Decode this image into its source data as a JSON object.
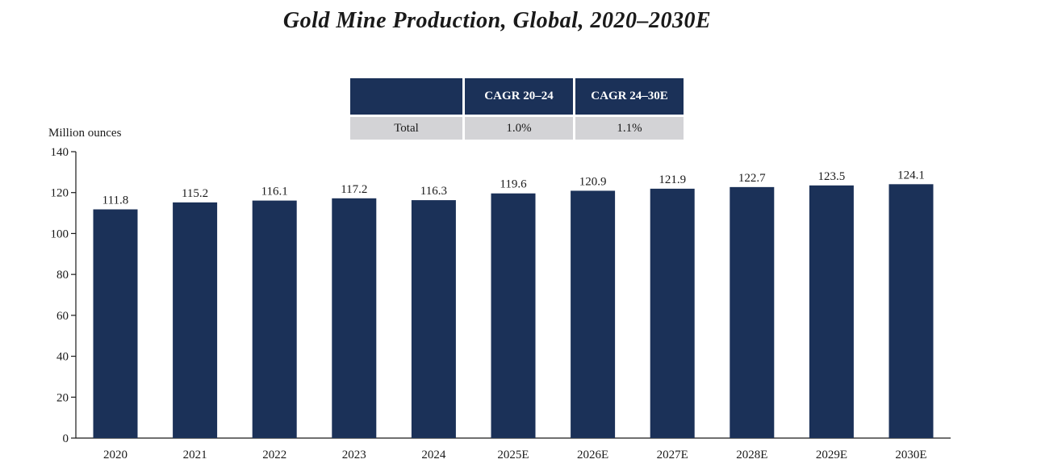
{
  "chart_data": {
    "type": "bar",
    "title": "Gold Mine Production, Global, 2020–2030E",
    "xlabel": "",
    "ylabel": "Million ounces",
    "ylim": [
      0,
      140
    ],
    "yticks": [
      0,
      20,
      40,
      60,
      80,
      100,
      120,
      140
    ],
    "grid": false,
    "categories": [
      "2020",
      "2021",
      "2022",
      "2023",
      "2024",
      "2025E",
      "2026E",
      "2027E",
      "2028E",
      "2029E",
      "2030E"
    ],
    "values": [
      111.8,
      115.2,
      116.1,
      117.2,
      116.3,
      119.6,
      120.9,
      121.9,
      122.7,
      123.5,
      124.1
    ],
    "value_labels": [
      "111.8",
      "115.2",
      "116.1",
      "117.2",
      "116.3",
      "119.6",
      "120.9",
      "121.9",
      "122.7",
      "123.5",
      "124.1"
    ],
    "bar_color": "#1b3158"
  },
  "cagr_table": {
    "header_blank": "",
    "col_a_label": "CAGR 20–24",
    "col_b_label": "CAGR 24–30E",
    "row_label": "Total",
    "col_a_value": "1.0%",
    "col_b_value": "1.1%",
    "header_color": "#1b3158",
    "cell_color": "#d3d3d6"
  }
}
